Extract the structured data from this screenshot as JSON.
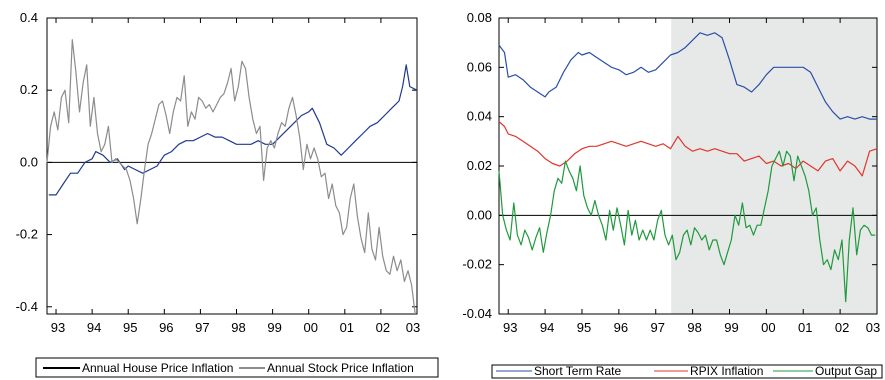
{
  "chart_data": [
    {
      "type": "line",
      "x_ticks": [
        "93",
        "94",
        "95",
        "96",
        "97",
        "98",
        "99",
        "00",
        "01",
        "02",
        "03"
      ],
      "y_ticks": [
        "0.4",
        "0.2",
        "0.0",
        "-0.2",
        "-0.4"
      ],
      "y_tick_values": [
        0.4,
        0.2,
        0.0,
        -0.2,
        -0.4
      ],
      "ylim": [
        -0.42,
        0.4
      ],
      "xlim": [
        1992.75,
        2003.0
      ],
      "zero_line": true,
      "legend_position": "bottom",
      "series": [
        {
          "name": "Annual House Price Inflation",
          "color": "#1f3a8f",
          "legend_color": "#000000",
          "x": [
            1992.8,
            1993.0,
            1993.2,
            1993.4,
            1993.6,
            1993.8,
            1994.0,
            1994.1,
            1994.3,
            1994.5,
            1994.7,
            1994.9,
            1995.0,
            1995.2,
            1995.4,
            1995.6,
            1995.8,
            1996.0,
            1996.2,
            1996.4,
            1996.6,
            1996.8,
            1997.0,
            1997.2,
            1997.4,
            1997.6,
            1997.8,
            1998.0,
            1998.2,
            1998.4,
            1998.6,
            1998.8,
            1999.0,
            1999.2,
            1999.4,
            1999.6,
            1999.8,
            2000.0,
            2000.1,
            2000.3,
            2000.5,
            2000.7,
            2000.9,
            2001.1,
            2001.3,
            2001.5,
            2001.7,
            2001.9,
            2002.1,
            2002.3,
            2002.5,
            2002.6,
            2002.7,
            2002.8,
            2003.0
          ],
          "values": [
            -0.09,
            -0.09,
            -0.06,
            -0.03,
            -0.03,
            0.0,
            0.01,
            0.03,
            0.02,
            0.0,
            0.01,
            -0.02,
            -0.01,
            -0.02,
            -0.03,
            -0.02,
            -0.01,
            0.02,
            0.03,
            0.05,
            0.06,
            0.06,
            0.07,
            0.08,
            0.07,
            0.07,
            0.06,
            0.05,
            0.05,
            0.05,
            0.06,
            0.05,
            0.05,
            0.07,
            0.09,
            0.11,
            0.13,
            0.14,
            0.15,
            0.11,
            0.05,
            0.04,
            0.02,
            0.04,
            0.06,
            0.08,
            0.1,
            0.11,
            0.13,
            0.15,
            0.17,
            0.21,
            0.27,
            0.21,
            0.2
          ]
        },
        {
          "name": "Annual Stock Price Inflation",
          "color": "#8c8c8c",
          "legend_color": "#8c8c8c",
          "x": [
            1992.75,
            1992.85,
            1992.95,
            1993.05,
            1993.15,
            1993.25,
            1993.35,
            1993.45,
            1993.55,
            1993.65,
            1993.75,
            1993.85,
            1993.95,
            1994.05,
            1994.15,
            1994.25,
            1994.35,
            1994.45,
            1994.55,
            1994.65,
            1994.75,
            1994.85,
            1994.95,
            1995.05,
            1995.15,
            1995.25,
            1995.35,
            1995.45,
            1995.55,
            1995.65,
            1995.75,
            1995.85,
            1995.95,
            1996.05,
            1996.15,
            1996.25,
            1996.35,
            1996.45,
            1996.55,
            1996.65,
            1996.75,
            1996.85,
            1996.95,
            1997.05,
            1997.15,
            1997.25,
            1997.35,
            1997.45,
            1997.55,
            1997.65,
            1997.75,
            1997.85,
            1997.95,
            1998.05,
            1998.15,
            1998.25,
            1998.35,
            1998.45,
            1998.55,
            1998.65,
            1998.75,
            1998.85,
            1998.95,
            1999.05,
            1999.15,
            1999.25,
            1999.35,
            1999.45,
            1999.55,
            1999.65,
            1999.75,
            1999.85,
            1999.95,
            2000.05,
            2000.15,
            2000.25,
            2000.35,
            2000.45,
            2000.55,
            2000.65,
            2000.75,
            2000.85,
            2000.95,
            2001.05,
            2001.15,
            2001.25,
            2001.35,
            2001.45,
            2001.55,
            2001.65,
            2001.75,
            2001.85,
            2001.95,
            2002.05,
            2002.15,
            2002.25,
            2002.35,
            2002.45,
            2002.55,
            2002.65,
            2002.75,
            2002.85,
            2002.95
          ],
          "values": [
            0.0,
            0.1,
            0.14,
            0.09,
            0.18,
            0.2,
            0.11,
            0.34,
            0.25,
            0.14,
            0.22,
            0.27,
            0.1,
            0.18,
            0.08,
            0.03,
            0.05,
            0.1,
            0.0,
            0.01,
            0.0,
            -0.01,
            -0.02,
            -0.05,
            -0.1,
            -0.17,
            -0.1,
            -0.02,
            0.05,
            0.08,
            0.12,
            0.16,
            0.17,
            0.13,
            0.08,
            0.14,
            0.18,
            0.17,
            0.24,
            0.1,
            0.14,
            0.12,
            0.18,
            0.17,
            0.15,
            0.16,
            0.14,
            0.16,
            0.18,
            0.19,
            0.22,
            0.26,
            0.17,
            0.21,
            0.28,
            0.26,
            0.18,
            0.12,
            0.08,
            0.1,
            -0.05,
            0.04,
            0.06,
            0.04,
            0.08,
            0.11,
            0.1,
            0.15,
            0.18,
            0.13,
            0.07,
            -0.02,
            0.05,
            0.01,
            0.04,
            0.01,
            -0.04,
            -0.03,
            -0.1,
            -0.06,
            -0.12,
            -0.14,
            -0.2,
            -0.18,
            -0.1,
            -0.06,
            -0.15,
            -0.21,
            -0.25,
            -0.14,
            -0.24,
            -0.27,
            -0.18,
            -0.26,
            -0.3,
            -0.31,
            -0.26,
            -0.3,
            -0.27,
            -0.33,
            -0.3,
            -0.34,
            -0.42
          ]
        }
      ]
    },
    {
      "type": "line",
      "x_ticks": [
        "93",
        "94",
        "95",
        "96",
        "97",
        "98",
        "99",
        "00",
        "01",
        "02",
        "03"
      ],
      "y_ticks": [
        "0.08",
        "0.06",
        "0.04",
        "0.02",
        "0.00",
        "-0.02",
        "-0.04"
      ],
      "y_tick_values": [
        0.08,
        0.06,
        0.04,
        0.02,
        0.0,
        -0.02,
        -0.04
      ],
      "ylim": [
        -0.04,
        0.08
      ],
      "xlim": [
        1992.75,
        2003.0
      ],
      "shaded_region": [
        1997.42,
        2003.0
      ],
      "zero_line": true,
      "legend_position": "bottom",
      "series": [
        {
          "name": "Short Term Rate",
          "color": "#2a4fa8",
          "x": [
            1992.75,
            1992.9,
            1993.0,
            1993.2,
            1993.4,
            1993.6,
            1993.8,
            1994.0,
            1994.1,
            1994.3,
            1994.5,
            1994.7,
            1994.9,
            1995.0,
            1995.2,
            1995.4,
            1995.6,
            1995.8,
            1996.0,
            1996.2,
            1996.4,
            1996.6,
            1996.8,
            1997.0,
            1997.2,
            1997.4,
            1997.6,
            1997.8,
            1998.0,
            1998.2,
            1998.4,
            1998.6,
            1998.8,
            1999.0,
            1999.2,
            1999.4,
            1999.6,
            1999.8,
            2000.0,
            2000.2,
            2000.4,
            2000.6,
            2000.8,
            2001.0,
            2001.2,
            2001.4,
            2001.6,
            2001.8,
            2002.0,
            2002.2,
            2002.4,
            2002.6,
            2002.8,
            2003.0
          ],
          "values": [
            0.069,
            0.066,
            0.056,
            0.057,
            0.055,
            0.052,
            0.05,
            0.048,
            0.05,
            0.052,
            0.058,
            0.063,
            0.066,
            0.065,
            0.066,
            0.064,
            0.062,
            0.06,
            0.059,
            0.057,
            0.058,
            0.06,
            0.058,
            0.059,
            0.062,
            0.065,
            0.066,
            0.068,
            0.071,
            0.074,
            0.073,
            0.074,
            0.072,
            0.063,
            0.053,
            0.052,
            0.05,
            0.053,
            0.057,
            0.06,
            0.06,
            0.06,
            0.06,
            0.06,
            0.058,
            0.052,
            0.046,
            0.042,
            0.039,
            0.04,
            0.039,
            0.04,
            0.039,
            0.039
          ]
        },
        {
          "name": "RPIX Inflation",
          "color": "#e0362b",
          "x": [
            1992.75,
            1992.9,
            1993.0,
            1993.2,
            1993.4,
            1993.6,
            1993.8,
            1994.0,
            1994.2,
            1994.4,
            1994.6,
            1994.8,
            1995.0,
            1995.2,
            1995.4,
            1995.6,
            1995.8,
            1996.0,
            1996.2,
            1996.4,
            1996.6,
            1996.8,
            1997.0,
            1997.2,
            1997.4,
            1997.6,
            1997.8,
            1998.0,
            1998.2,
            1998.4,
            1998.6,
            1998.8,
            1999.0,
            1999.2,
            1999.4,
            1999.6,
            1999.8,
            2000.0,
            2000.2,
            2000.4,
            2000.6,
            2000.8,
            2001.0,
            2001.2,
            2001.4,
            2001.6,
            2001.8,
            2002.0,
            2002.2,
            2002.4,
            2002.6,
            2002.8,
            2003.0
          ],
          "values": [
            0.038,
            0.036,
            0.033,
            0.032,
            0.03,
            0.028,
            0.026,
            0.023,
            0.021,
            0.02,
            0.022,
            0.025,
            0.027,
            0.028,
            0.028,
            0.029,
            0.03,
            0.029,
            0.028,
            0.029,
            0.03,
            0.029,
            0.028,
            0.029,
            0.027,
            0.032,
            0.028,
            0.026,
            0.027,
            0.026,
            0.027,
            0.026,
            0.025,
            0.025,
            0.022,
            0.023,
            0.024,
            0.021,
            0.022,
            0.02,
            0.021,
            0.019,
            0.022,
            0.02,
            0.018,
            0.022,
            0.023,
            0.018,
            0.022,
            0.02,
            0.016,
            0.026,
            0.027
          ]
        },
        {
          "name": "Output Gap",
          "color": "#1f9a3c",
          "x": [
            1992.75,
            1992.85,
            1992.95,
            1993.05,
            1993.15,
            1993.25,
            1993.35,
            1993.45,
            1993.55,
            1993.65,
            1993.75,
            1993.85,
            1993.95,
            1994.05,
            1994.15,
            1994.25,
            1994.35,
            1994.45,
            1994.55,
            1994.65,
            1994.75,
            1994.85,
            1994.95,
            1995.05,
            1995.15,
            1995.25,
            1995.35,
            1995.45,
            1995.55,
            1995.65,
            1995.75,
            1995.85,
            1995.95,
            1996.05,
            1996.15,
            1996.25,
            1996.35,
            1996.45,
            1996.55,
            1996.65,
            1996.75,
            1996.85,
            1996.95,
            1997.05,
            1997.15,
            1997.25,
            1997.35,
            1997.45,
            1997.55,
            1997.65,
            1997.75,
            1997.85,
            1997.95,
            1998.05,
            1998.15,
            1998.25,
            1998.35,
            1998.45,
            1998.55,
            1998.65,
            1998.75,
            1998.85,
            1998.95,
            1999.05,
            1999.15,
            1999.25,
            1999.35,
            1999.45,
            1999.55,
            1999.65,
            1999.75,
            1999.85,
            1999.95,
            2000.05,
            2000.15,
            2000.25,
            2000.35,
            2000.45,
            2000.55,
            2000.65,
            2000.75,
            2000.85,
            2000.95,
            2001.05,
            2001.15,
            2001.25,
            2001.35,
            2001.45,
            2001.55,
            2001.65,
            2001.75,
            2001.85,
            2001.95,
            2002.05,
            2002.15,
            2002.25,
            2002.35,
            2002.45,
            2002.55,
            2002.65,
            2002.75,
            2002.85,
            2002.95
          ],
          "values": [
            0.018,
            0.0,
            -0.006,
            -0.01,
            0.005,
            -0.008,
            -0.012,
            -0.006,
            -0.009,
            -0.014,
            -0.009,
            -0.005,
            -0.015,
            -0.007,
            0.0,
            0.01,
            0.015,
            0.013,
            0.022,
            0.018,
            0.015,
            0.01,
            0.02,
            0.008,
            0.003,
            0.0,
            0.006,
            0.0,
            -0.004,
            -0.01,
            0.002,
            -0.006,
            0.003,
            -0.004,
            -0.012,
            0.002,
            -0.008,
            -0.002,
            -0.01,
            -0.006,
            -0.01,
            -0.006,
            -0.01,
            -0.002,
            0.002,
            -0.008,
            -0.012,
            -0.008,
            -0.018,
            -0.015,
            -0.008,
            -0.006,
            -0.012,
            -0.005,
            -0.007,
            -0.01,
            -0.008,
            -0.014,
            -0.01,
            -0.01,
            -0.016,
            -0.02,
            -0.015,
            -0.01,
            0.0,
            -0.004,
            0.005,
            -0.005,
            -0.004,
            -0.008,
            -0.004,
            -0.004,
            0.003,
            0.01,
            0.02,
            0.023,
            0.026,
            0.02,
            0.026,
            0.024,
            0.014,
            0.024,
            0.02,
            0.016,
            0.01,
            0.0,
            0.003,
            -0.01,
            -0.02,
            -0.018,
            -0.022,
            -0.014,
            -0.018,
            -0.01,
            -0.035,
            -0.01,
            0.003,
            -0.016,
            -0.006,
            -0.004,
            -0.005,
            -0.008,
            -0.008
          ]
        }
      ]
    }
  ]
}
